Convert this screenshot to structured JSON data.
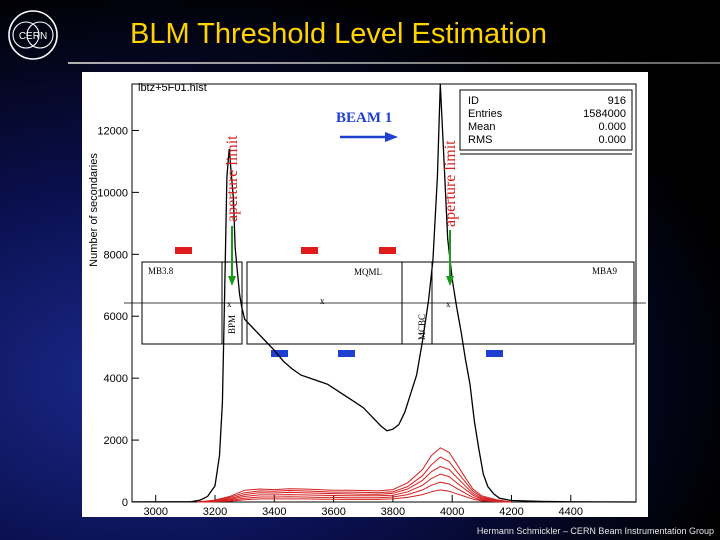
{
  "slide": {
    "title": "BLM Threshold Level Estimation",
    "footer": "Hermann Schmickler – CERN Beam Instrumentation Group",
    "logo_text": "CERN",
    "title_color": "#ffd200"
  },
  "chart_data": {
    "type": "line",
    "title": "lbtz+5F01.hist",
    "ylabel": "Number of secondaries",
    "xlabel": "",
    "xlim": [
      2920,
      4620
    ],
    "ylim": [
      0,
      13500
    ],
    "x_ticks": [
      3000,
      3200,
      3400,
      3600,
      3800,
      4000,
      4200,
      4400
    ],
    "x_tick_labels": [
      "3000",
      "3200",
      "3400",
      "3600",
      "3800",
      "4000",
      "4200",
      "4400"
    ],
    "y_ticks": [
      0,
      2000,
      4000,
      6000,
      8000,
      10000,
      12000
    ],
    "y_tick_labels": [
      "0",
      "2000",
      "4000",
      "6000",
      "8000",
      "10000",
      "12000"
    ],
    "grid": false,
    "stats": [
      {
        "label": "ID",
        "value": "916"
      },
      {
        "label": "Entries",
        "value": "1584000"
      },
      {
        "label": "Mean",
        "value": "0.000"
      },
      {
        "label": "RMS",
        "value": "0.000"
      }
    ],
    "annotations": {
      "beam": "BEAM 1",
      "aperture_left": "aperture limit",
      "aperture_right": "aperture limit",
      "element_left": "MB3.8",
      "element_mid": "MQML",
      "element_right": "MBA9",
      "bpm": "BPM",
      "mcbc": "MCBC",
      "marker": "x"
    },
    "colors": {
      "main_series": "#000000",
      "red_series": "#d42020",
      "blm_upper": "#e01b1b",
      "blm_lower": "#1f3fd1",
      "beam_arrow": "#1f3fd1",
      "aperture_arrow": "#1a9a1a"
    },
    "series": [
      {
        "values": [
          [
            2920,
            2
          ],
          [
            3040,
            6
          ],
          [
            3120,
            14
          ],
          [
            3150,
            60
          ],
          [
            3175,
            180
          ],
          [
            3200,
            520
          ],
          [
            3215,
            1500
          ],
          [
            3225,
            3200
          ],
          [
            3232,
            6500
          ],
          [
            3240,
            10500
          ],
          [
            3248,
            11400
          ],
          [
            3255,
            10600
          ],
          [
            3262,
            9800
          ],
          [
            3268,
            8200
          ],
          [
            3275,
            7500
          ],
          [
            3283,
            6700
          ],
          [
            3290,
            6300
          ],
          [
            3300,
            5900
          ],
          [
            3320,
            5700
          ],
          [
            3340,
            5500
          ],
          [
            3370,
            5200
          ],
          [
            3400,
            4900
          ],
          [
            3430,
            4550
          ],
          [
            3460,
            4300
          ],
          [
            3490,
            4100
          ],
          [
            3520,
            4000
          ],
          [
            3550,
            3900
          ],
          [
            3580,
            3800
          ],
          [
            3620,
            3550
          ],
          [
            3660,
            3300
          ],
          [
            3700,
            3050
          ],
          [
            3740,
            2650
          ],
          [
            3760,
            2450
          ],
          [
            3780,
            2300
          ],
          [
            3800,
            2350
          ],
          [
            3820,
            2500
          ],
          [
            3840,
            2900
          ],
          [
            3860,
            3500
          ],
          [
            3880,
            4100
          ],
          [
            3900,
            5200
          ],
          [
            3920,
            6500
          ],
          [
            3935,
            7800
          ],
          [
            3950,
            10500
          ],
          [
            3960,
            13500
          ],
          [
            3970,
            11500
          ],
          [
            3985,
            8500
          ],
          [
            4000,
            7200
          ],
          [
            4015,
            6300
          ],
          [
            4030,
            5500
          ],
          [
            4045,
            4600
          ],
          [
            4060,
            3800
          ],
          [
            4075,
            2600
          ],
          [
            4090,
            1700
          ],
          [
            4105,
            900
          ],
          [
            4120,
            500
          ],
          [
            4140,
            260
          ],
          [
            4160,
            120
          ],
          [
            4200,
            50
          ],
          [
            4300,
            18
          ],
          [
            4400,
            6
          ],
          [
            4500,
            2
          ],
          [
            4620,
            0
          ]
        ]
      },
      {
        "values": [
          [
            3140,
            0
          ],
          [
            3200,
            60
          ],
          [
            3250,
            180
          ],
          [
            3300,
            380
          ],
          [
            3350,
            420
          ],
          [
            3400,
            400
          ],
          [
            3450,
            430
          ],
          [
            3500,
            420
          ],
          [
            3550,
            400
          ],
          [
            3600,
            380
          ],
          [
            3650,
            380
          ],
          [
            3700,
            370
          ],
          [
            3750,
            360
          ],
          [
            3800,
            400
          ],
          [
            3850,
            620
          ],
          [
            3900,
            1050
          ],
          [
            3930,
            1500
          ],
          [
            3960,
            1750
          ],
          [
            3990,
            1600
          ],
          [
            4010,
            1300
          ],
          [
            4040,
            850
          ],
          [
            4070,
            420
          ],
          [
            4100,
            200
          ],
          [
            4150,
            70
          ],
          [
            4200,
            0
          ]
        ]
      },
      {
        "values": [
          [
            3140,
            0
          ],
          [
            3200,
            40
          ],
          [
            3250,
            150
          ],
          [
            3300,
            300
          ],
          [
            3350,
            360
          ],
          [
            3400,
            350
          ],
          [
            3450,
            370
          ],
          [
            3500,
            360
          ],
          [
            3550,
            340
          ],
          [
            3600,
            320
          ],
          [
            3650,
            320
          ],
          [
            3700,
            310
          ],
          [
            3750,
            300
          ],
          [
            3800,
            330
          ],
          [
            3850,
            500
          ],
          [
            3900,
            850
          ],
          [
            3930,
            1200
          ],
          [
            3960,
            1450
          ],
          [
            3990,
            1300
          ],
          [
            4010,
            1050
          ],
          [
            4040,
            700
          ],
          [
            4070,
            350
          ],
          [
            4100,
            160
          ],
          [
            4150,
            50
          ],
          [
            4200,
            0
          ]
        ]
      },
      {
        "values": [
          [
            3140,
            0
          ],
          [
            3200,
            30
          ],
          [
            3250,
            110
          ],
          [
            3300,
            240
          ],
          [
            3350,
            300
          ],
          [
            3400,
            290
          ],
          [
            3450,
            310
          ],
          [
            3500,
            300
          ],
          [
            3550,
            280
          ],
          [
            3600,
            270
          ],
          [
            3650,
            260
          ],
          [
            3700,
            250
          ],
          [
            3750,
            250
          ],
          [
            3800,
            280
          ],
          [
            3850,
            420
          ],
          [
            3900,
            700
          ],
          [
            3930,
            980
          ],
          [
            3960,
            1150
          ],
          [
            3990,
            1050
          ],
          [
            4010,
            850
          ],
          [
            4040,
            560
          ],
          [
            4070,
            280
          ],
          [
            4100,
            120
          ],
          [
            4150,
            40
          ],
          [
            4200,
            0
          ]
        ]
      },
      {
        "values": [
          [
            3140,
            0
          ],
          [
            3200,
            20
          ],
          [
            3250,
            80
          ],
          [
            3300,
            180
          ],
          [
            3350,
            230
          ],
          [
            3400,
            230
          ],
          [
            3450,
            240
          ],
          [
            3500,
            230
          ],
          [
            3550,
            220
          ],
          [
            3600,
            210
          ],
          [
            3650,
            200
          ],
          [
            3700,
            200
          ],
          [
            3750,
            200
          ],
          [
            3800,
            220
          ],
          [
            3850,
            330
          ],
          [
            3900,
            540
          ],
          [
            3930,
            760
          ],
          [
            3960,
            900
          ],
          [
            3990,
            820
          ],
          [
            4010,
            660
          ],
          [
            4040,
            440
          ],
          [
            4070,
            220
          ],
          [
            4100,
            90
          ],
          [
            4150,
            30
          ],
          [
            4200,
            0
          ]
        ]
      },
      {
        "values": [
          [
            3140,
            0
          ],
          [
            3200,
            10
          ],
          [
            3250,
            50
          ],
          [
            3300,
            120
          ],
          [
            3350,
            160
          ],
          [
            3400,
            160
          ],
          [
            3450,
            170
          ],
          [
            3500,
            160
          ],
          [
            3550,
            150
          ],
          [
            3600,
            150
          ],
          [
            3650,
            140
          ],
          [
            3700,
            140
          ],
          [
            3750,
            140
          ],
          [
            3800,
            160
          ],
          [
            3850,
            240
          ],
          [
            3900,
            390
          ],
          [
            3930,
            540
          ],
          [
            3960,
            640
          ],
          [
            3990,
            580
          ],
          [
            4010,
            470
          ],
          [
            4040,
            310
          ],
          [
            4070,
            150
          ],
          [
            4100,
            60
          ],
          [
            4150,
            20
          ],
          [
            4200,
            0
          ]
        ]
      },
      {
        "values": [
          [
            3140,
            0
          ],
          [
            3200,
            5
          ],
          [
            3250,
            30
          ],
          [
            3300,
            70
          ],
          [
            3350,
            100
          ],
          [
            3400,
            100
          ],
          [
            3450,
            100
          ],
          [
            3500,
            100
          ],
          [
            3550,
            95
          ],
          [
            3600,
            90
          ],
          [
            3650,
            85
          ],
          [
            3700,
            85
          ],
          [
            3750,
            85
          ],
          [
            3800,
            100
          ],
          [
            3850,
            150
          ],
          [
            3900,
            240
          ],
          [
            3930,
            330
          ],
          [
            3960,
            390
          ],
          [
            3990,
            350
          ],
          [
            4010,
            280
          ],
          [
            4040,
            190
          ],
          [
            4070,
            90
          ],
          [
            4100,
            35
          ],
          [
            4150,
            10
          ],
          [
            4200,
            0
          ]
        ]
      }
    ]
  }
}
